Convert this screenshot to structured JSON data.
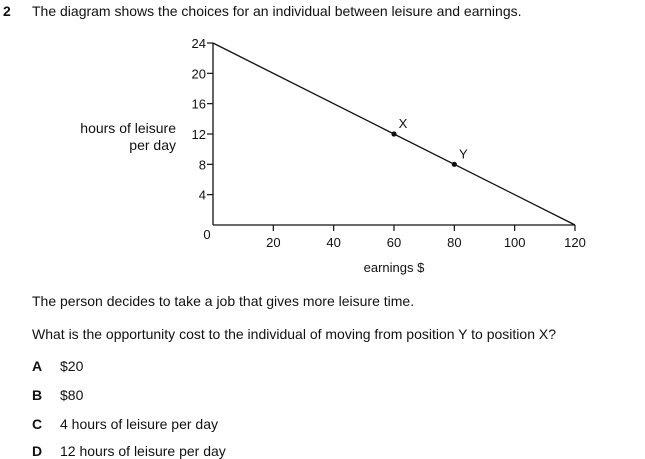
{
  "question": {
    "number": "2",
    "stem": "The diagram shows the choices for an individual between leisure and earnings.",
    "context": "The person decides to take a job that gives more leisure time.",
    "prompt": "What is the opportunity cost to the individual of moving from position Y to position X?",
    "options": [
      {
        "letter": "A",
        "text": "$20"
      },
      {
        "letter": "B",
        "text": "$80"
      },
      {
        "letter": "C",
        "text": "4 hours of leisure per day"
      },
      {
        "letter": "D",
        "text": "12 hours of leisure per day"
      }
    ]
  },
  "chart_data": {
    "type": "line",
    "ylabel_line1": "hours of leisure",
    "ylabel_line2": "per day",
    "xlabel": "earnings $",
    "xlim": [
      0,
      120
    ],
    "ylim": [
      0,
      24
    ],
    "x_ticks": [
      20,
      40,
      60,
      80,
      100,
      120
    ],
    "y_ticks": [
      4,
      8,
      12,
      16,
      20,
      24
    ],
    "origin_label": "0",
    "grid": false,
    "series": [
      {
        "x": [
          0,
          120
        ],
        "y": [
          24,
          0
        ]
      }
    ],
    "points": [
      {
        "label": "X",
        "x": 60,
        "y": 12
      },
      {
        "label": "Y",
        "x": 80,
        "y": 8
      }
    ]
  }
}
